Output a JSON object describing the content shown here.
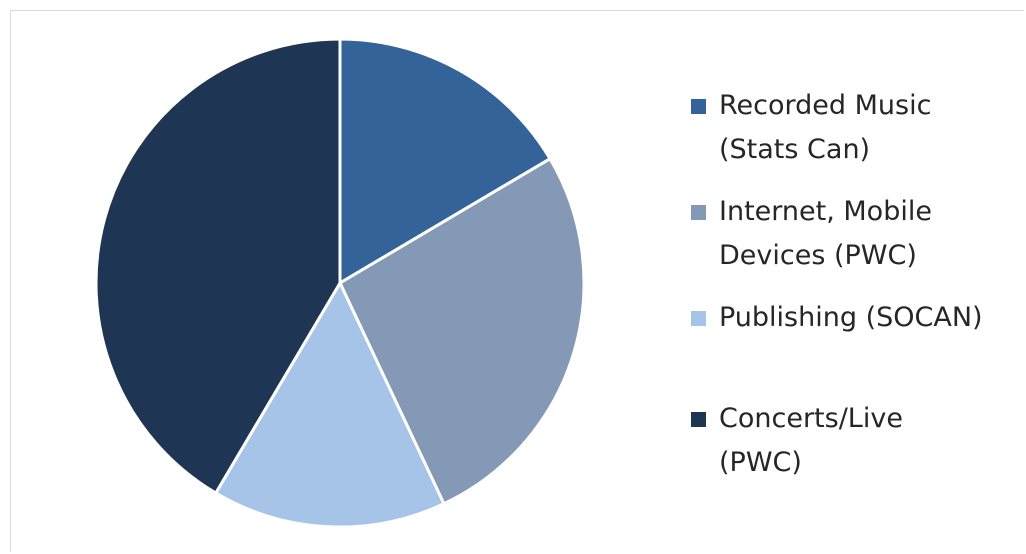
{
  "chart_data": {
    "type": "pie",
    "title": "",
    "slices": [
      {
        "label": "Recorded Music (Stats Can)",
        "label_lines": [
          "Recorded Music",
          "(Stats Can)"
        ],
        "value": 16.5,
        "color": "#346399"
      },
      {
        "label": "Internet, Mobile Devices (PWC)",
        "label_lines": [
          "Internet, Mobile",
          "Devices (PWC)"
        ],
        "value": 26.5,
        "color": "#8499b5"
      },
      {
        "label": "Publishing (SOCAN)",
        "label_lines": [
          "Publishing (SOCAN)"
        ],
        "value": 15.5,
        "color": "#a6c3e8"
      },
      {
        "label": "Concerts/Live (PWC)",
        "label_lines": [
          "Concerts/Live",
          "(PWC)"
        ],
        "value": 41.5,
        "color": "#1f3554"
      }
    ],
    "start_angle_deg": 0,
    "direction": "clockwise",
    "legend_position": "right"
  }
}
